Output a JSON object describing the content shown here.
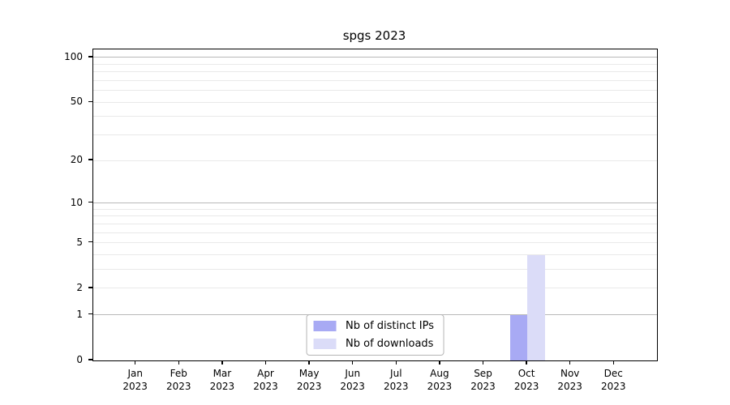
{
  "chart_data": {
    "type": "bar",
    "title": "spgs 2023",
    "x_months": [
      "Jan",
      "Feb",
      "Mar",
      "Apr",
      "May",
      "Jun",
      "Jul",
      "Aug",
      "Sep",
      "Oct",
      "Nov",
      "Dec"
    ],
    "x_year": "2023",
    "series": [
      {
        "name": "Nb of distinct IPs",
        "color": "#a8aaf4",
        "values": [
          0,
          0,
          0,
          0,
          0,
          0,
          0,
          0,
          0,
          1,
          0,
          0
        ]
      },
      {
        "name": "Nb of downloads",
        "color": "#dbdcf8",
        "values": [
          0,
          0,
          0,
          0,
          0,
          0,
          0,
          0,
          0,
          4,
          0,
          0
        ]
      }
    ],
    "yscale": "log1p",
    "ylim": [
      0,
      113
    ],
    "y_tick_values": [
      0,
      1,
      2,
      5,
      10,
      20,
      50,
      100
    ],
    "y_tick_labels": [
      "0",
      "1",
      "2",
      "5",
      "10",
      "20",
      "50",
      "100"
    ],
    "y_minor_gridlines": [
      3,
      4,
      6,
      7,
      8,
      9,
      30,
      40,
      60,
      70,
      80,
      90
    ],
    "y_decade_gridlines": [
      1,
      10,
      100
    ],
    "grid": true,
    "legend_position": "lower center"
  }
}
